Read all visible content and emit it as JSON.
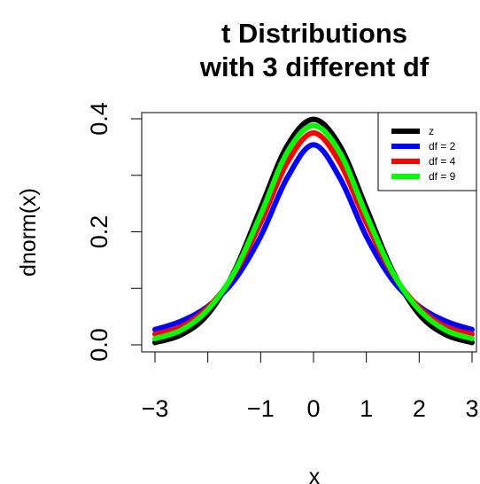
{
  "chart_data": {
    "type": "line",
    "title_line1": "t Distributions",
    "title_line2": "with 3 different df",
    "xlabel": "x",
    "ylabel": "dnorm(x)",
    "xlim": [
      -3,
      3
    ],
    "ylim": [
      0,
      0.4
    ],
    "x_ticks": [
      -3,
      -2,
      -1,
      0,
      1,
      2,
      3
    ],
    "x_tick_labels": [
      "−3",
      "",
      "−1",
      "0",
      "1",
      "2",
      "3"
    ],
    "y_ticks": [
      0,
      0.1,
      0.2,
      0.3,
      0.4
    ],
    "y_tick_labels": [
      "0.0",
      "",
      "0.2",
      "",
      "0.4"
    ],
    "grid": false,
    "legend_position": "top-right",
    "x": [
      -3,
      -2.5,
      -2,
      -1.5,
      -1,
      -0.5,
      0,
      0.5,
      1,
      1.5,
      2,
      2.5,
      3
    ],
    "series": [
      {
        "name": "z",
        "color": "#000000",
        "values": [
          0.004,
          0.018,
          0.054,
          0.13,
          0.242,
          0.352,
          0.399,
          0.352,
          0.242,
          0.13,
          0.054,
          0.018,
          0.004
        ]
      },
      {
        "name": "df = 2",
        "color": "#0000ff",
        "values": [
          0.027,
          0.042,
          0.068,
          0.114,
          0.192,
          0.295,
          0.354,
          0.295,
          0.192,
          0.114,
          0.068,
          0.042,
          0.027
        ]
      },
      {
        "name": "df = 4",
        "color": "#ff0000",
        "values": [
          0.019,
          0.032,
          0.066,
          0.125,
          0.216,
          0.322,
          0.375,
          0.322,
          0.216,
          0.125,
          0.066,
          0.032,
          0.019
        ]
      },
      {
        "name": "df = 9",
        "color": "#00ff00",
        "values": [
          0.011,
          0.026,
          0.062,
          0.128,
          0.23,
          0.34,
          0.388,
          0.34,
          0.23,
          0.128,
          0.062,
          0.026,
          0.011
        ]
      }
    ]
  }
}
